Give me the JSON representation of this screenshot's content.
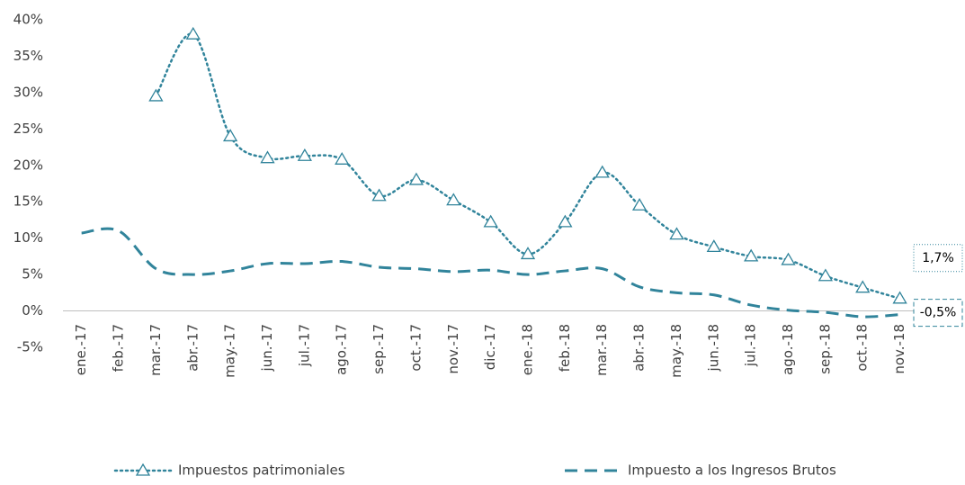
{
  "chart_data": {
    "type": "line",
    "categories": [
      "ene.-17",
      "feb.-17",
      "mar.-17",
      "abr.-17",
      "may.-17",
      "jun.-17",
      "jul.-17",
      "ago.-17",
      "sep.-17",
      "oct.-17",
      "nov.-17",
      "dic.-17",
      "ene.-18",
      "feb.-18",
      "mar.-18",
      "abr.-18",
      "may.-18",
      "jun.-18",
      "jul.-18",
      "ago.-18",
      "sep.-18",
      "oct.-18",
      "nov.-18"
    ],
    "series": [
      {
        "name": "Impuestos patrimoniales",
        "color": "#31849b",
        "style": "dotted",
        "marker": "triangle",
        "values": [
          null,
          null,
          29.5,
          38,
          24,
          21,
          21.3,
          20.8,
          15.8,
          18,
          15.2,
          12.2,
          7.8,
          12.2,
          19,
          14.5,
          10.5,
          8.8,
          7.5,
          7,
          4.8,
          3.2,
          1.7
        ],
        "value_labels": [
          null,
          null,
          null,
          null,
          null,
          null,
          null,
          null,
          null,
          null,
          null,
          null,
          null,
          null,
          null,
          null,
          null,
          null,
          null,
          null,
          null,
          null,
          "1,7%"
        ]
      },
      {
        "name": "Impuesto a los Ingresos Brutos",
        "color": "#31849b",
        "style": "dashed",
        "values": [
          10.7,
          11,
          5.8,
          5,
          5.5,
          6.5,
          6.5,
          6.8,
          6,
          5.8,
          5.4,
          5.6,
          5,
          5.5,
          5.8,
          3.3,
          2.5,
          2.2,
          0.8,
          0.1,
          -0.2,
          -0.8,
          -0.5
        ],
        "value_labels": [
          null,
          null,
          null,
          null,
          null,
          null,
          null,
          null,
          null,
          null,
          null,
          null,
          null,
          null,
          null,
          null,
          null,
          null,
          null,
          null,
          null,
          null,
          "-0,5%"
        ]
      }
    ],
    "ylim": [
      -5,
      40
    ],
    "yticks": [
      {
        "value": -5,
        "label": "-5%"
      },
      {
        "value": 0,
        "label": "0%"
      },
      {
        "value": 5,
        "label": "5%"
      },
      {
        "value": 10,
        "label": "10%"
      },
      {
        "value": 15,
        "label": "15%"
      },
      {
        "value": 20,
        "label": "20%"
      },
      {
        "value": 25,
        "label": "25%"
      },
      {
        "value": 30,
        "label": "30%"
      },
      {
        "value": 35,
        "label": "35%"
      },
      {
        "value": 40,
        "label": "40%"
      }
    ],
    "grid": false,
    "legend": "bottom"
  }
}
